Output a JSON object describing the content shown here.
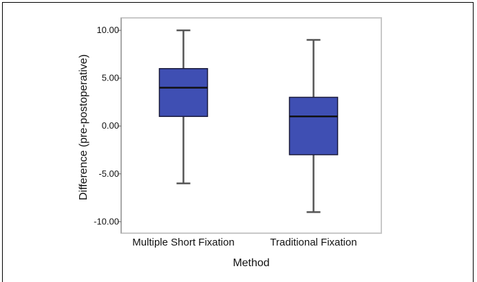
{
  "chart_data": {
    "type": "box",
    "xlabel": "Method",
    "ylabel": "Difference (pre-postoperative)",
    "ylim": [
      -11.2,
      11.3
    ],
    "yticks": [
      {
        "value": 10,
        "label": "10.00"
      },
      {
        "value": 5,
        "label": "5.00"
      },
      {
        "value": 0,
        "label": "0.00"
      },
      {
        "value": -5,
        "label": "-5.00"
      },
      {
        "value": -10,
        "label": "-10.00"
      }
    ],
    "categories": [
      "Multiple Short Fixation",
      "Traditional Fixation"
    ],
    "boxes": [
      {
        "category": "Multiple Short Fixation",
        "min": -6,
        "q1": 1,
        "median": 4,
        "q3": 6,
        "max": 10
      },
      {
        "category": "Traditional Fixation",
        "min": -9,
        "q1": -3,
        "median": 1,
        "q3": 3,
        "max": 9
      }
    ],
    "colors": {
      "box_fill": "#3f4fb3",
      "box_stroke": "#1a1a3a",
      "whisker": "#555555",
      "plot_border": "#c8c8c8"
    },
    "grid": false
  }
}
